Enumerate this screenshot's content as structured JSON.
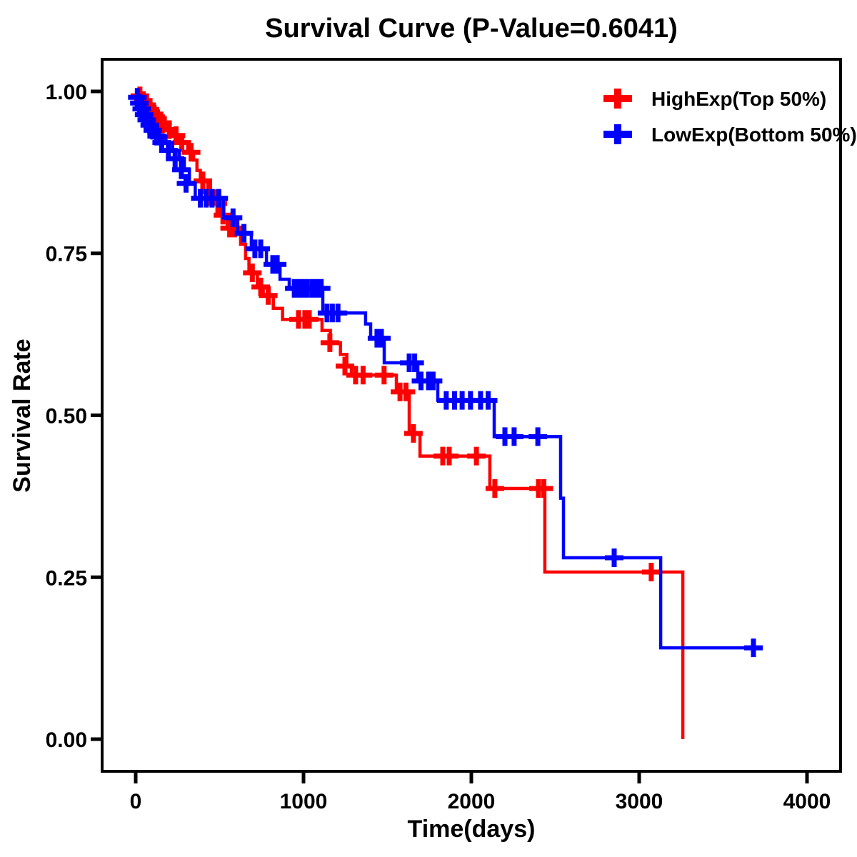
{
  "page": {
    "background": "#ffffff",
    "text_color": "#000000"
  },
  "chart_data": {
    "type": "line",
    "subtype": "kaplan-meier-step",
    "title": "Survival Curve (P-Value=0.6041)",
    "p_value": "0.6041",
    "xlabel": "Time(days)",
    "ylabel": "Survival Rate",
    "xlim": [
      -200,
      4200
    ],
    "ylim": [
      -0.0496,
      1.0496
    ],
    "xticks": [
      0,
      1000,
      2000,
      3000,
      4000
    ],
    "xtick_labels": [
      "0",
      "1000",
      "2000",
      "3000",
      "4000"
    ],
    "yticks": [
      0.0,
      0.25,
      0.5,
      0.75,
      1.0
    ],
    "ytick_labels": [
      "0.00",
      "0.25",
      "0.50",
      "0.75",
      "1.00"
    ],
    "grid": false,
    "legend_position": "top-right-inside",
    "axis_color": "#000000",
    "series": [
      {
        "name": "HighExp(Top 50%)",
        "color": "#ff0000",
        "end_t": 3260,
        "step_points": [
          [
            0,
            1.0
          ],
          [
            20,
            0.993
          ],
          [
            40,
            0.986
          ],
          [
            60,
            0.979
          ],
          [
            80,
            0.972
          ],
          [
            100,
            0.965
          ],
          [
            120,
            0.958
          ],
          [
            150,
            0.95
          ],
          [
            185,
            0.941
          ],
          [
            220,
            0.932
          ],
          [
            260,
            0.921
          ],
          [
            310,
            0.906
          ],
          [
            345,
            0.894
          ],
          [
            365,
            0.878
          ],
          [
            385,
            0.862
          ],
          [
            430,
            0.845
          ],
          [
            470,
            0.827
          ],
          [
            510,
            0.809
          ],
          [
            545,
            0.789
          ],
          [
            625,
            0.764
          ],
          [
            655,
            0.742
          ],
          [
            675,
            0.72
          ],
          [
            725,
            0.698
          ],
          [
            760,
            0.685
          ],
          [
            820,
            0.665
          ],
          [
            875,
            0.648
          ],
          [
            1110,
            0.631
          ],
          [
            1160,
            0.612
          ],
          [
            1220,
            0.594
          ],
          [
            1258,
            0.576
          ],
          [
            1285,
            0.562
          ],
          [
            1553,
            0.536
          ],
          [
            1630,
            0.472
          ],
          [
            1694,
            0.437
          ],
          [
            2110,
            0.387
          ],
          [
            2438,
            0.258
          ],
          [
            3260,
            0.0
          ]
        ],
        "censors": [
          [
            25,
            0.993
          ],
          [
            45,
            0.986
          ],
          [
            65,
            0.979
          ],
          [
            85,
            0.972
          ],
          [
            110,
            0.965
          ],
          [
            130,
            0.958
          ],
          [
            160,
            0.95
          ],
          [
            200,
            0.941
          ],
          [
            240,
            0.932
          ],
          [
            275,
            0.921
          ],
          [
            330,
            0.906
          ],
          [
            400,
            0.862
          ],
          [
            440,
            0.845
          ],
          [
            490,
            0.827
          ],
          [
            520,
            0.809
          ],
          [
            560,
            0.789
          ],
          [
            590,
            0.789
          ],
          [
            695,
            0.72
          ],
          [
            745,
            0.698
          ],
          [
            790,
            0.685
          ],
          [
            970,
            0.648
          ],
          [
            1008,
            0.648
          ],
          [
            1034,
            0.648
          ],
          [
            1157,
            0.612
          ],
          [
            1247,
            0.576
          ],
          [
            1310,
            0.562
          ],
          [
            1355,
            0.562
          ],
          [
            1480,
            0.562
          ],
          [
            1575,
            0.536
          ],
          [
            1610,
            0.536
          ],
          [
            1655,
            0.472
          ],
          [
            1830,
            0.437
          ],
          [
            1868,
            0.437
          ],
          [
            2030,
            0.437
          ],
          [
            2140,
            0.387
          ],
          [
            2400,
            0.387
          ],
          [
            2432,
            0.387
          ],
          [
            3072,
            0.258
          ]
        ]
      },
      {
        "name": "LowExp(Bottom 50%)",
        "color": "#0000ff",
        "end_t": 3681,
        "step_points": [
          [
            0,
            1.0
          ],
          [
            15,
            0.991
          ],
          [
            30,
            0.982
          ],
          [
            45,
            0.973
          ],
          [
            60,
            0.964
          ],
          [
            78,
            0.956
          ],
          [
            95,
            0.948
          ],
          [
            115,
            0.94
          ],
          [
            140,
            0.931
          ],
          [
            180,
            0.921
          ],
          [
            220,
            0.909
          ],
          [
            260,
            0.896
          ],
          [
            290,
            0.879
          ],
          [
            320,
            0.858
          ],
          [
            355,
            0.835
          ],
          [
            523,
            0.805
          ],
          [
            608,
            0.781
          ],
          [
            689,
            0.757
          ],
          [
            779,
            0.733
          ],
          [
            860,
            0.71
          ],
          [
            915,
            0.696
          ],
          [
            1115,
            0.658
          ],
          [
            1370,
            0.641
          ],
          [
            1400,
            0.619
          ],
          [
            1481,
            0.581
          ],
          [
            1681,
            0.553
          ],
          [
            1800,
            0.523
          ],
          [
            2136,
            0.467
          ],
          [
            2532,
            0.372
          ],
          [
            2549,
            0.28
          ],
          [
            3128,
            0.141
          ]
        ],
        "censors": [
          [
            10,
            0.991
          ],
          [
            22,
            0.982
          ],
          [
            36,
            0.973
          ],
          [
            50,
            0.964
          ],
          [
            66,
            0.956
          ],
          [
            84,
            0.948
          ],
          [
            102,
            0.94
          ],
          [
            125,
            0.931
          ],
          [
            155,
            0.921
          ],
          [
            195,
            0.909
          ],
          [
            235,
            0.896
          ],
          [
            272,
            0.879
          ],
          [
            300,
            0.858
          ],
          [
            385,
            0.835
          ],
          [
            420,
            0.835
          ],
          [
            455,
            0.835
          ],
          [
            495,
            0.835
          ],
          [
            580,
            0.805
          ],
          [
            645,
            0.781
          ],
          [
            710,
            0.757
          ],
          [
            745,
            0.757
          ],
          [
            817,
            0.733
          ],
          [
            843,
            0.733
          ],
          [
            945,
            0.696
          ],
          [
            970,
            0.696
          ],
          [
            996,
            0.696
          ],
          [
            1021,
            0.696
          ],
          [
            1051,
            0.696
          ],
          [
            1081,
            0.696
          ],
          [
            1105,
            0.696
          ],
          [
            1140,
            0.658
          ],
          [
            1172,
            0.658
          ],
          [
            1205,
            0.658
          ],
          [
            1438,
            0.619
          ],
          [
            1464,
            0.619
          ],
          [
            1630,
            0.581
          ],
          [
            1662,
            0.581
          ],
          [
            1700,
            0.553
          ],
          [
            1745,
            0.553
          ],
          [
            1772,
            0.553
          ],
          [
            1850,
            0.523
          ],
          [
            1900,
            0.523
          ],
          [
            1945,
            0.523
          ],
          [
            1995,
            0.523
          ],
          [
            2055,
            0.523
          ],
          [
            2100,
            0.523
          ],
          [
            2200,
            0.467
          ],
          [
            2255,
            0.467
          ],
          [
            2396,
            0.467
          ],
          [
            2851,
            0.28
          ],
          [
            3681,
            0.141
          ]
        ]
      }
    ]
  }
}
